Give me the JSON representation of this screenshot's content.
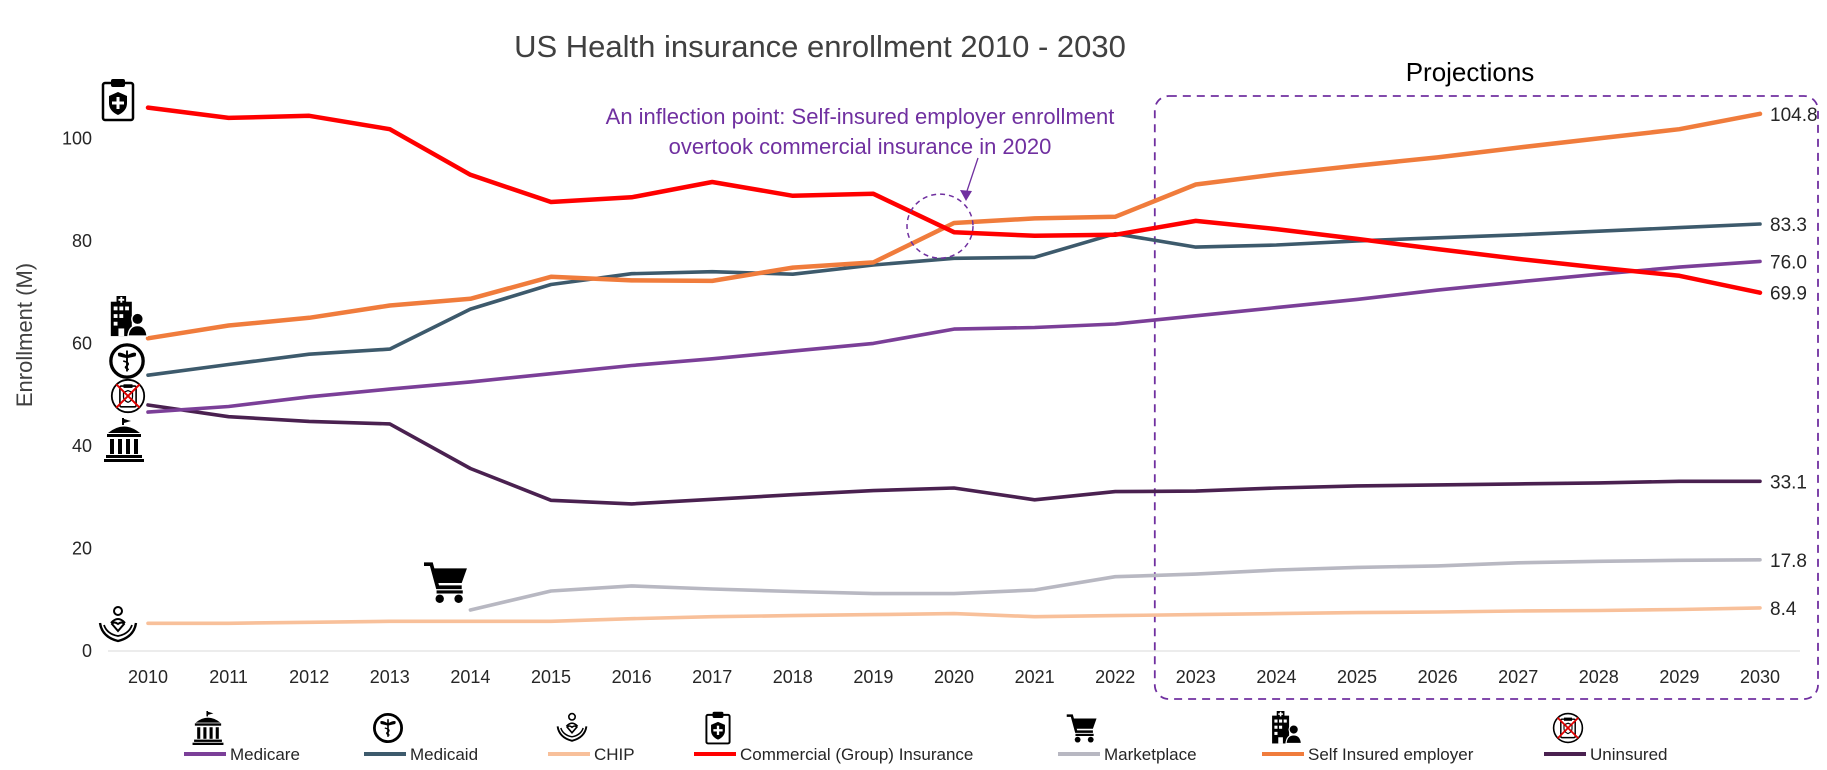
{
  "chart_data": {
    "type": "line",
    "title": "US Health insurance enrollment 2010 - 2030",
    "ylabel": "Enrollment (M)",
    "xlabel": "",
    "ylim": [
      0,
      110
    ],
    "yticks": [
      0,
      20,
      40,
      60,
      80,
      100
    ],
    "x": [
      2010,
      2011,
      2012,
      2013,
      2014,
      2015,
      2016,
      2017,
      2018,
      2019,
      2020,
      2021,
      2022,
      2023,
      2024,
      2025,
      2026,
      2027,
      2028,
      2029,
      2030
    ],
    "grid": false,
    "legend_position": "bottom",
    "series": [
      {
        "name": "Medicare",
        "color": "#7b3f98",
        "icon": "bank-building-icon",
        "end_label": "76.0",
        "values": [
          46.6,
          47.7,
          49.6,
          51.1,
          52.5,
          54.1,
          55.7,
          57.0,
          58.5,
          60.0,
          62.8,
          63.1,
          63.8,
          65.4,
          67.0,
          68.6,
          70.4,
          72.0,
          73.5,
          74.9,
          76.0
        ]
      },
      {
        "name": "Medicaid",
        "color": "#3d5a6c",
        "icon": "caduceus-icon",
        "end_label": "83.3",
        "values": [
          53.8,
          55.9,
          57.9,
          58.9,
          66.7,
          71.5,
          73.6,
          74.0,
          73.5,
          75.3,
          76.6,
          76.8,
          81.4,
          78.8,
          79.2,
          80.0,
          80.6,
          81.2,
          81.9,
          82.6,
          83.3
        ]
      },
      {
        "name": "CHIP",
        "color": "#f8c09a",
        "icon": "family-care-icon",
        "end_label": "8.4",
        "values": [
          5.4,
          5.4,
          5.6,
          5.8,
          5.8,
          5.8,
          6.3,
          6.7,
          6.9,
          7.1,
          7.3,
          6.7,
          6.9,
          7.1,
          7.3,
          7.5,
          7.6,
          7.8,
          7.9,
          8.1,
          8.4
        ]
      },
      {
        "name": "Commercial (Group) Insurance",
        "color": "#ff0000",
        "icon": "medical-clipboard-icon",
        "end_label": "69.9",
        "values": [
          106.0,
          104.0,
          104.4,
          101.8,
          92.9,
          87.6,
          88.5,
          91.5,
          88.8,
          89.2,
          81.7,
          81.0,
          81.2,
          83.9,
          82.3,
          80.4,
          78.4,
          76.5,
          74.8,
          73.2,
          69.9
        ]
      },
      {
        "name": "Marketplace",
        "color": "#b8b8c2",
        "icon": "shopping-cart-icon",
        "end_label": "17.8",
        "values": [
          null,
          null,
          null,
          null,
          8.0,
          11.7,
          12.7,
          12.1,
          11.6,
          11.2,
          11.2,
          11.9,
          14.5,
          15.0,
          15.8,
          16.3,
          16.6,
          17.2,
          17.5,
          17.7,
          17.8
        ]
      },
      {
        "name": "Self Insured employer",
        "color": "#f07c3c",
        "icon": "hospital-staff-icon",
        "end_label": "104.8",
        "values": [
          61.0,
          63.5,
          65.0,
          67.4,
          68.7,
          73.0,
          72.3,
          72.2,
          74.8,
          75.8,
          83.5,
          84.4,
          84.7,
          91.0,
          93.0,
          94.7,
          96.3,
          98.2,
          100.0,
          101.8,
          104.8
        ]
      },
      {
        "name": "Uninsured",
        "color": "#4a2150",
        "icon": "uninsured-icon",
        "end_label": "33.1",
        "values": [
          48.0,
          45.7,
          44.8,
          44.3,
          35.6,
          29.4,
          28.7,
          29.6,
          30.5,
          31.3,
          31.8,
          29.5,
          31.1,
          31.2,
          31.8,
          32.2,
          32.4,
          32.6,
          32.8,
          33.1,
          33.1
        ]
      }
    ],
    "annotations": {
      "inflection_line1": "An inflection point: Self-insured employer enrollment",
      "inflection_line2": "overtook commercial insurance in 2020",
      "projections_label": "Projections",
      "projection_range": [
        2023,
        2030
      ]
    }
  }
}
